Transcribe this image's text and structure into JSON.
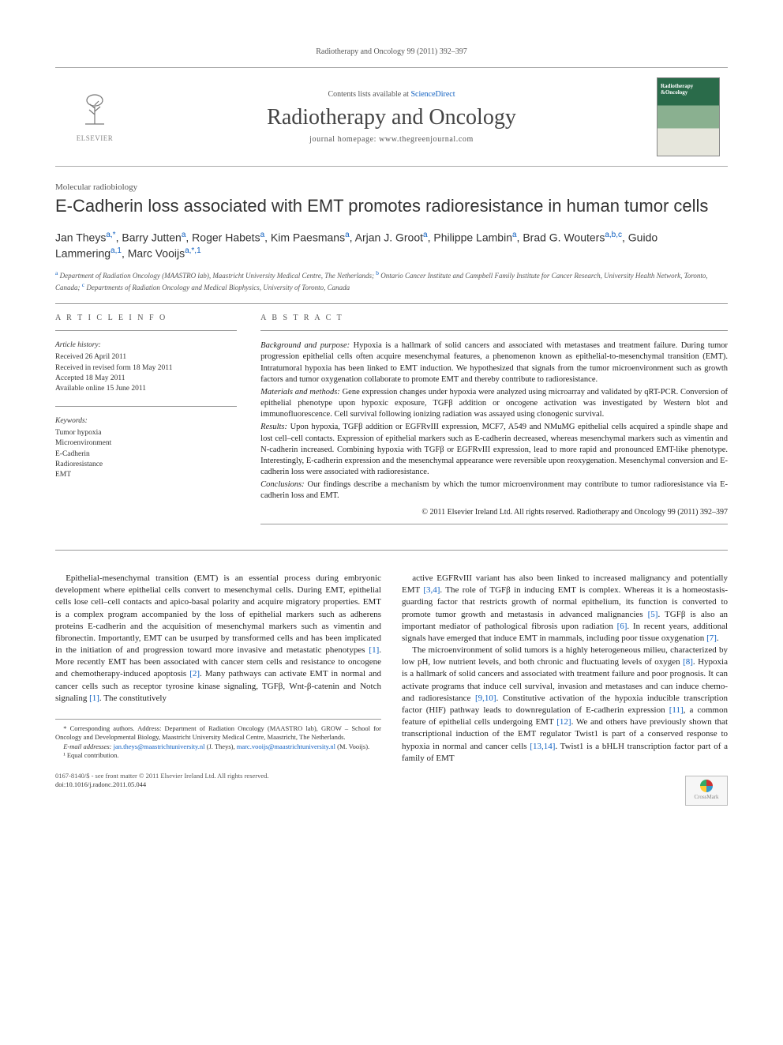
{
  "header": {
    "citation": "Radiotherapy and Oncology 99 (2011) 392–397",
    "contents_prefix": "Contents lists available at ",
    "contents_link": "ScienceDirect",
    "journal_name": "Radiotherapy and Oncology",
    "homepage_prefix": "journal homepage: ",
    "homepage_url": "www.thegreenjournal.com",
    "publisher": "ELSEVIER",
    "cover_label": "Radiotherapy\n&Oncology"
  },
  "article": {
    "category": "Molecular radiobiology",
    "title": "E-Cadherin loss associated with EMT promotes radioresistance in human tumor cells",
    "authors_html": "Jan Theys<sup class='aff'>a,*</sup>, Barry Jutten<sup class='aff'>a</sup>, Roger Habets<sup class='aff'>a</sup>, Kim Paesmans<sup class='aff'>a</sup>, Arjan J. Groot<sup class='aff'>a</sup>, Philippe Lambin<sup class='aff'>a</sup>, Brad G. Wouters<sup class='aff'>a,b,c</sup>, Guido Lammering<sup class='aff'>a,1</sup>, Marc Vooijs<sup class='aff'>a,*,1</sup>",
    "affiliations_html": "<sup>a</sup> Department of Radiation Oncology (MAASTRO lab), Maastricht University Medical Centre, The Netherlands; <sup>b</sup> Ontario Cancer Institute and Campbell Family Institute for Cancer Research, University Health Network, Toronto, Canada; <sup>c</sup> Departments of Radiation Oncology and Medical Biophysics, University of Toronto, Canada"
  },
  "info": {
    "heading": "A R T I C L E   I N F O",
    "history_label": "Article history:",
    "history": "Received 26 April 2011\nReceived in revised form 18 May 2011\nAccepted 18 May 2011\nAvailable online 15 June 2011",
    "keywords_label": "Keywords:",
    "keywords": "Tumor hypoxia\nMicroenvironment\nE-Cadherin\nRadioresistance\nEMT"
  },
  "abstract": {
    "heading": "A B S T R A C T",
    "background_label": "Background and purpose:",
    "background": "Hypoxia is a hallmark of solid cancers and associated with metastases and treatment failure. During tumor progression epithelial cells often acquire mesenchymal features, a phenomenon known as epithelial-to-mesenchymal transition (EMT). Intratumoral hypoxia has been linked to EMT induction. We hypothesized that signals from the tumor microenvironment such as growth factors and tumor oxygenation collaborate to promote EMT and thereby contribute to radioresistance.",
    "methods_label": "Materials and methods:",
    "methods": "Gene expression changes under hypoxia were analyzed using microarray and validated by qRT-PCR. Conversion of epithelial phenotype upon hypoxic exposure, TGFβ addition or oncogene activation was investigated by Western blot and immunofluorescence. Cell survival following ionizing radiation was assayed using clonogenic survival.",
    "results_label": "Results:",
    "results": "Upon hypoxia, TGFβ addition or EGFRvIII expression, MCF7, A549 and NMuMG epithelial cells acquired a spindle shape and lost cell–cell contacts. Expression of epithelial markers such as E-cadherin decreased, whereas mesenchymal markers such as vimentin and N-cadherin increased. Combining hypoxia with TGFβ or EGFRvIII expression, lead to more rapid and pronounced EMT-like phenotype. Interestingly, E-cadherin expression and the mesenchymal appearance were reversible upon reoxygenation. Mesenchymal conversion and E-cadherin loss were associated with radioresistance.",
    "conclusions_label": "Conclusions:",
    "conclusions": "Our findings describe a mechanism by which the tumor microenvironment may contribute to tumor radioresistance via E-cadherin loss and EMT.",
    "copyright": "© 2011 Elsevier Ireland Ltd. All rights reserved. Radiotherapy and Oncology 99 (2011) 392–397"
  },
  "body": {
    "left": "Epithelial-mesenchymal transition (EMT) is an essential process during embryonic development where epithelial cells convert to mesenchymal cells. During EMT, epithelial cells lose cell–cell contacts and apico-basal polarity and acquire migratory properties. EMT is a complex program accompanied by the loss of epithelial markers such as adherens proteins E-cadherin and the acquisition of mesenchymal markers such as vimentin and fibronectin. Importantly, EMT can be usurped by transformed cells and has been implicated in the initiation of and progression toward more invasive and metastatic phenotypes [1]. More recently EMT has been associated with cancer stem cells and resistance to oncogene and chemotherapy-induced apoptosis [2]. Many pathways can activate EMT in normal and cancer cells such as receptor tyrosine kinase signaling, TGFβ, Wnt-β-catenin and Notch signaling [1]. The constitutively",
    "right": "active EGFRvIII variant has also been linked to increased malignancy and potentially EMT [3,4]. The role of TGFβ in inducing EMT is complex. Whereas it is a homeostasis-guarding factor that restricts growth of normal epithelium, its function is converted to promote tumor growth and metastasis in advanced malignancies [5]. TGFβ is also an important mediator of pathological fibrosis upon radiation [6]. In recent years, additional signals have emerged that induce EMT in mammals, including poor tissue oxygenation [7].",
    "right_p2": "The microenvironment of solid tumors is a highly heterogeneous milieu, characterized by low pH, low nutrient levels, and both chronic and fluctuating levels of oxygen [8]. Hypoxia is a hallmark of solid cancers and associated with treatment failure and poor prognosis. It can activate programs that induce cell survival, invasion and metastases and can induce chemo- and radioresistance [9,10]. Constitutive activation of the hypoxia inducible transcription factor (HIF) pathway leads to downregulation of E-cadherin expression [11], a common feature of epithelial cells undergoing EMT [12]. We and others have previously shown that transcriptional induction of the EMT regulator Twist1 is part of a conserved response to hypoxia in normal and cancer cells [13,14]. Twist1 is a bHLH transcription factor part of a family of EMT"
  },
  "footnotes": {
    "corr": "* Corresponding authors. Address: Department of Radiation Oncology (MAASTRO lab), GROW – School for Oncology and Developmental Biology, Maastricht University Medical Centre, Maastricht, The Netherlands.",
    "email_label": "E-mail addresses:",
    "email1": "jan.theys@maastrichtuniversity.nl",
    "email1_who": " (J. Theys), ",
    "email2": "marc.vooijs@maastrichtuniversity.nl",
    "email2_who": " (M. Vooijs).",
    "equal": "¹ Equal contribution."
  },
  "footer": {
    "issn": "0167-8140/$ - see front matter © 2011 Elsevier Ireland Ltd. All rights reserved.",
    "doi": "doi:10.1016/j.radonc.2011.05.044",
    "crossmark": "CrossMark"
  },
  "colors": {
    "link": "#1060c0",
    "text": "#222",
    "rule": "#999"
  }
}
